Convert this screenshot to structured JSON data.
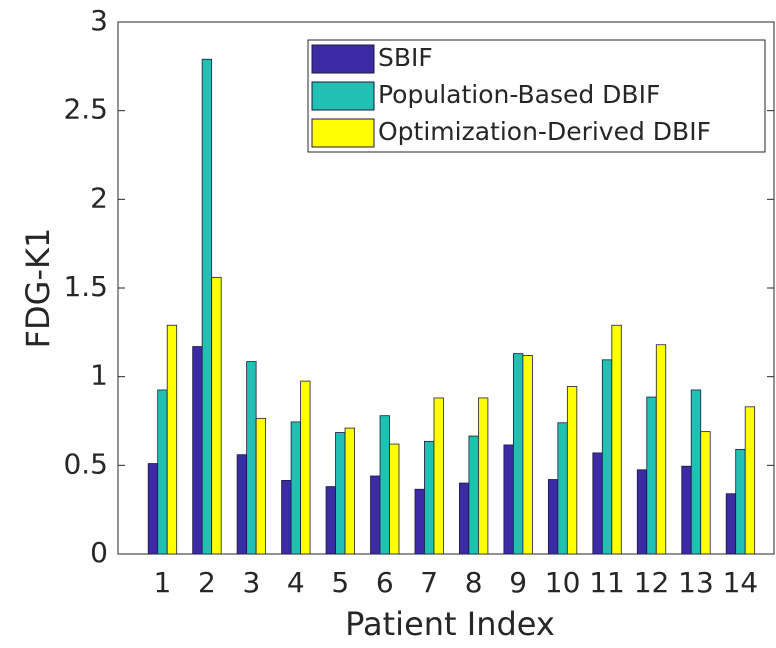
{
  "chart_data": {
    "type": "bar",
    "xlabel": "Patient Index",
    "ylabel": "FDG-K1",
    "categories": [
      "1",
      "2",
      "3",
      "4",
      "5",
      "6",
      "7",
      "8",
      "9",
      "10",
      "11",
      "12",
      "13",
      "14"
    ],
    "series": [
      {
        "name": "SBIF",
        "color": "#3b2ca6",
        "values": [
          0.51,
          1.17,
          0.56,
          0.415,
          0.38,
          0.44,
          0.365,
          0.4,
          0.615,
          0.42,
          0.57,
          0.475,
          0.495,
          0.34
        ]
      },
      {
        "name": "Population-Based DBIF",
        "color": "#22c0b2",
        "values": [
          0.925,
          2.79,
          1.085,
          0.745,
          0.685,
          0.78,
          0.635,
          0.665,
          1.13,
          0.74,
          1.095,
          0.885,
          0.925,
          0.59
        ]
      },
      {
        "name": "Optimization-Derived DBIF",
        "color": "#ffff00",
        "values": [
          1.29,
          1.56,
          0.765,
          0.975,
          0.71,
          0.62,
          0.88,
          0.88,
          1.12,
          0.945,
          1.29,
          1.18,
          0.69,
          0.83
        ]
      }
    ],
    "ylim": [
      0,
      3
    ],
    "yticks": [
      0,
      0.5,
      1,
      1.5,
      2,
      2.5,
      3
    ],
    "legend": "upper-right"
  }
}
